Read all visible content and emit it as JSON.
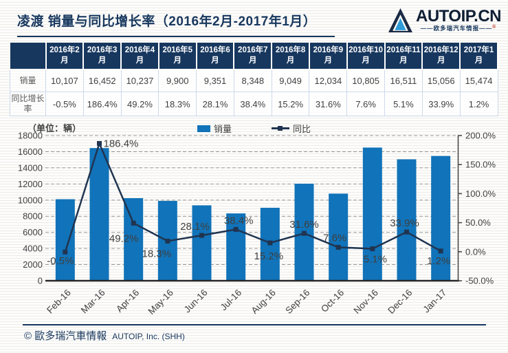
{
  "header": {
    "title": "凌渡 销量与同比增长率（2016年2月-2017年1月）",
    "logo": {
      "text": "AUTOIP.CN",
      "tagline": "——欧多瑞汽车情报——",
      "registered_mark": "®"
    }
  },
  "table": {
    "corner_label": "",
    "columns": [
      "2016年2月",
      "2016年3月",
      "2016年4月",
      "2016年5月",
      "2016年6月",
      "2016年7月",
      "2016年8月",
      "2016年9月",
      "2016年10月",
      "2016年11月",
      "2016年12月",
      "2017年1月"
    ],
    "rows": [
      {
        "label": "销量",
        "values": [
          "10,107",
          "16,452",
          "10,237",
          "9,900",
          "9,351",
          "8,348",
          "9,049",
          "12,034",
          "10,805",
          "16,511",
          "15,056",
          "15,474"
        ]
      },
      {
        "label": "同比增长率",
        "values": [
          "-0.5%",
          "186.4%",
          "49.2%",
          "18.3%",
          "28.1%",
          "38.4%",
          "15.2%",
          "31.6%",
          "7.6%",
          "5.1%",
          "33.9%",
          "1.2%"
        ]
      }
    ]
  },
  "chart": {
    "unit_label": "（单位：辆）",
    "legend": [
      {
        "label": "销量",
        "type": "bar"
      },
      {
        "label": "同比",
        "type": "line"
      }
    ]
  },
  "chart_data": {
    "type": "bar+line",
    "categories": [
      "Feb-16",
      "Mar-16",
      "Apr-16",
      "May-16",
      "Jun-16",
      "Jul-16",
      "Aug-16",
      "Sep-16",
      "Oct-16",
      "Nov-16",
      "Dec-16",
      "Jan-17"
    ],
    "series": [
      {
        "name": "销量",
        "type": "bar",
        "axis": "left",
        "values": [
          10107,
          16452,
          10237,
          9900,
          9351,
          8348,
          9049,
          12034,
          10805,
          16511,
          15056,
          15474
        ]
      },
      {
        "name": "同比",
        "type": "line",
        "axis": "right",
        "values": [
          -0.5,
          186.4,
          49.2,
          18.3,
          28.1,
          38.4,
          15.2,
          31.6,
          7.6,
          5.1,
          33.9,
          1.2
        ],
        "point_labels": [
          "-0.5%",
          "186.4%",
          "49.2%",
          "18.3%",
          "28.1%",
          "38.4%",
          "15.2%",
          "31.6%",
          "7.6%",
          "5.1%",
          "33.9%",
          "1.2%"
        ]
      }
    ],
    "left_axis": {
      "min": 0,
      "max": 18000,
      "step": 2000,
      "tick_labels": [
        "18000",
        "16000",
        "14000",
        "12000",
        "10000",
        "8000",
        "6000",
        "4000",
        "2000",
        "0"
      ]
    },
    "right_axis": {
      "min": -50,
      "max": 200,
      "step": 50,
      "tick_labels": [
        "200.0%",
        "150.0%",
        "100.0%",
        "50.0%",
        "0.0%",
        "-50.0%"
      ]
    },
    "grid": "horizontal-dashed",
    "legend_position": "top",
    "title": "凌渡 销量与同比增长率（2016年2月-2017年1月）"
  },
  "footer": {
    "copyright": "© 歐多瑞汽車情報",
    "company": "AUTOIP, Inc. (SHH)"
  },
  "colors": {
    "bar": "#1173b9",
    "line": "#203450",
    "header_bg": "#17375e",
    "accent": "#17375e",
    "logo_blue": "#2e9bd8",
    "grid": "#999999",
    "axis_text": "#404040"
  }
}
